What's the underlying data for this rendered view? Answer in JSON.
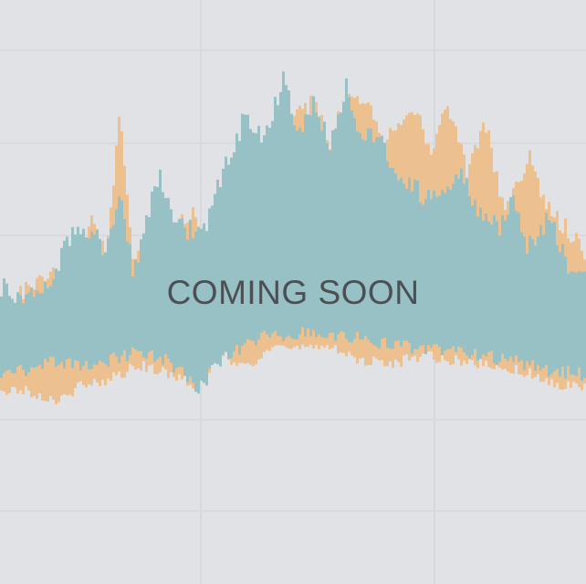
{
  "headline": "COMING SOON",
  "colors": {
    "background": "#e1e2e6",
    "gridline": "#d7d8dc",
    "teal_series": "#97c1c4",
    "orange_series": "#edc090",
    "text": "#4c5055"
  }
}
